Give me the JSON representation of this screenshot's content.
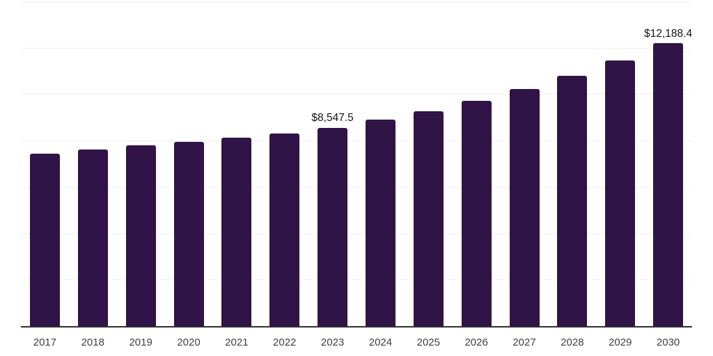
{
  "chart_data": {
    "type": "bar",
    "categories": [
      "2017",
      "2018",
      "2019",
      "2020",
      "2021",
      "2022",
      "2023",
      "2024",
      "2025",
      "2026",
      "2027",
      "2028",
      "2029",
      "2030"
    ],
    "values": [
      7450,
      7610,
      7780,
      7950,
      8120,
      8300,
      8547.5,
      8890,
      9250,
      9700,
      10210,
      10800,
      11450,
      12188.4
    ],
    "data_labels": [
      "",
      "",
      "",
      "",
      "",
      "",
      "$8,547.5",
      "",
      "",
      "",
      "",
      "",
      "",
      "$12,188.4"
    ],
    "ylim": [
      0,
      14000
    ],
    "gridline_step": 2000,
    "grid": "horizontal-only",
    "legend": "none",
    "colors": {
      "bar": "#311447",
      "gridline": "#efefef",
      "axis_line": "#2e2e2e",
      "data_label": "#141414",
      "tick_label": "#3f3f3f",
      "background": "#ffffff"
    }
  }
}
